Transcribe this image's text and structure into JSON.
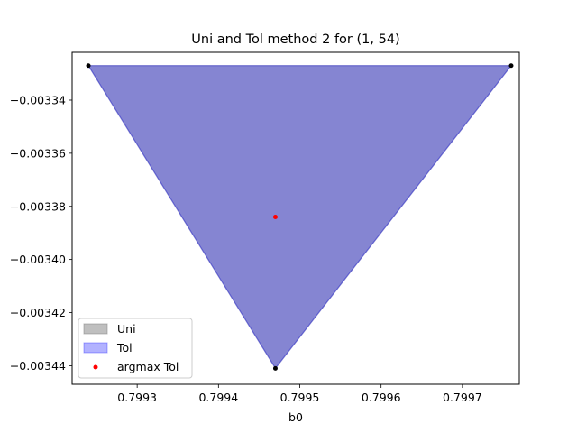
{
  "chart_data": {
    "type": "area",
    "title": "Uni and Tol method 2 for (1, 54)",
    "xlabel": "b0",
    "ylabel": "",
    "xlim": [
      0.79922,
      0.79977
    ],
    "ylim": [
      -0.003447,
      -0.003322
    ],
    "xticks": [
      0.7993,
      0.7994,
      0.7995,
      0.7996,
      0.7997
    ],
    "xtick_labels": [
      "0.7993",
      "0.7994",
      "0.7995",
      "0.7996",
      "0.7997"
    ],
    "yticks": [
      -0.00344,
      -0.00342,
      -0.0034,
      -0.00338,
      -0.00336,
      -0.00334
    ],
    "ytick_labels": [
      "−0.00344",
      "−0.00342",
      "−0.00340",
      "−0.00338",
      "−0.00336",
      "−0.00334"
    ],
    "series": [
      {
        "name": "Uni",
        "kind": "polygon",
        "color": "#808080",
        "vertices": [
          [
            0.79924,
            -0.003327
          ],
          [
            0.79976,
            -0.003327
          ],
          [
            0.79947,
            -0.003441
          ]
        ]
      },
      {
        "name": "Tol",
        "kind": "polygon",
        "color": "#0000ff",
        "vertices": [
          [
            0.79924,
            -0.003327
          ],
          [
            0.79976,
            -0.003327
          ],
          [
            0.79947,
            -0.003441
          ]
        ]
      },
      {
        "name": "argmax Tol",
        "kind": "point",
        "color": "#ff0000",
        "points": [
          [
            0.79947,
            -0.003384
          ]
        ]
      }
    ],
    "vertex_markers": [
      [
        0.79924,
        -0.003327
      ],
      [
        0.79976,
        -0.003327
      ],
      [
        0.79947,
        -0.003441
      ]
    ],
    "legend_placement": "lower-left",
    "grid": false
  }
}
